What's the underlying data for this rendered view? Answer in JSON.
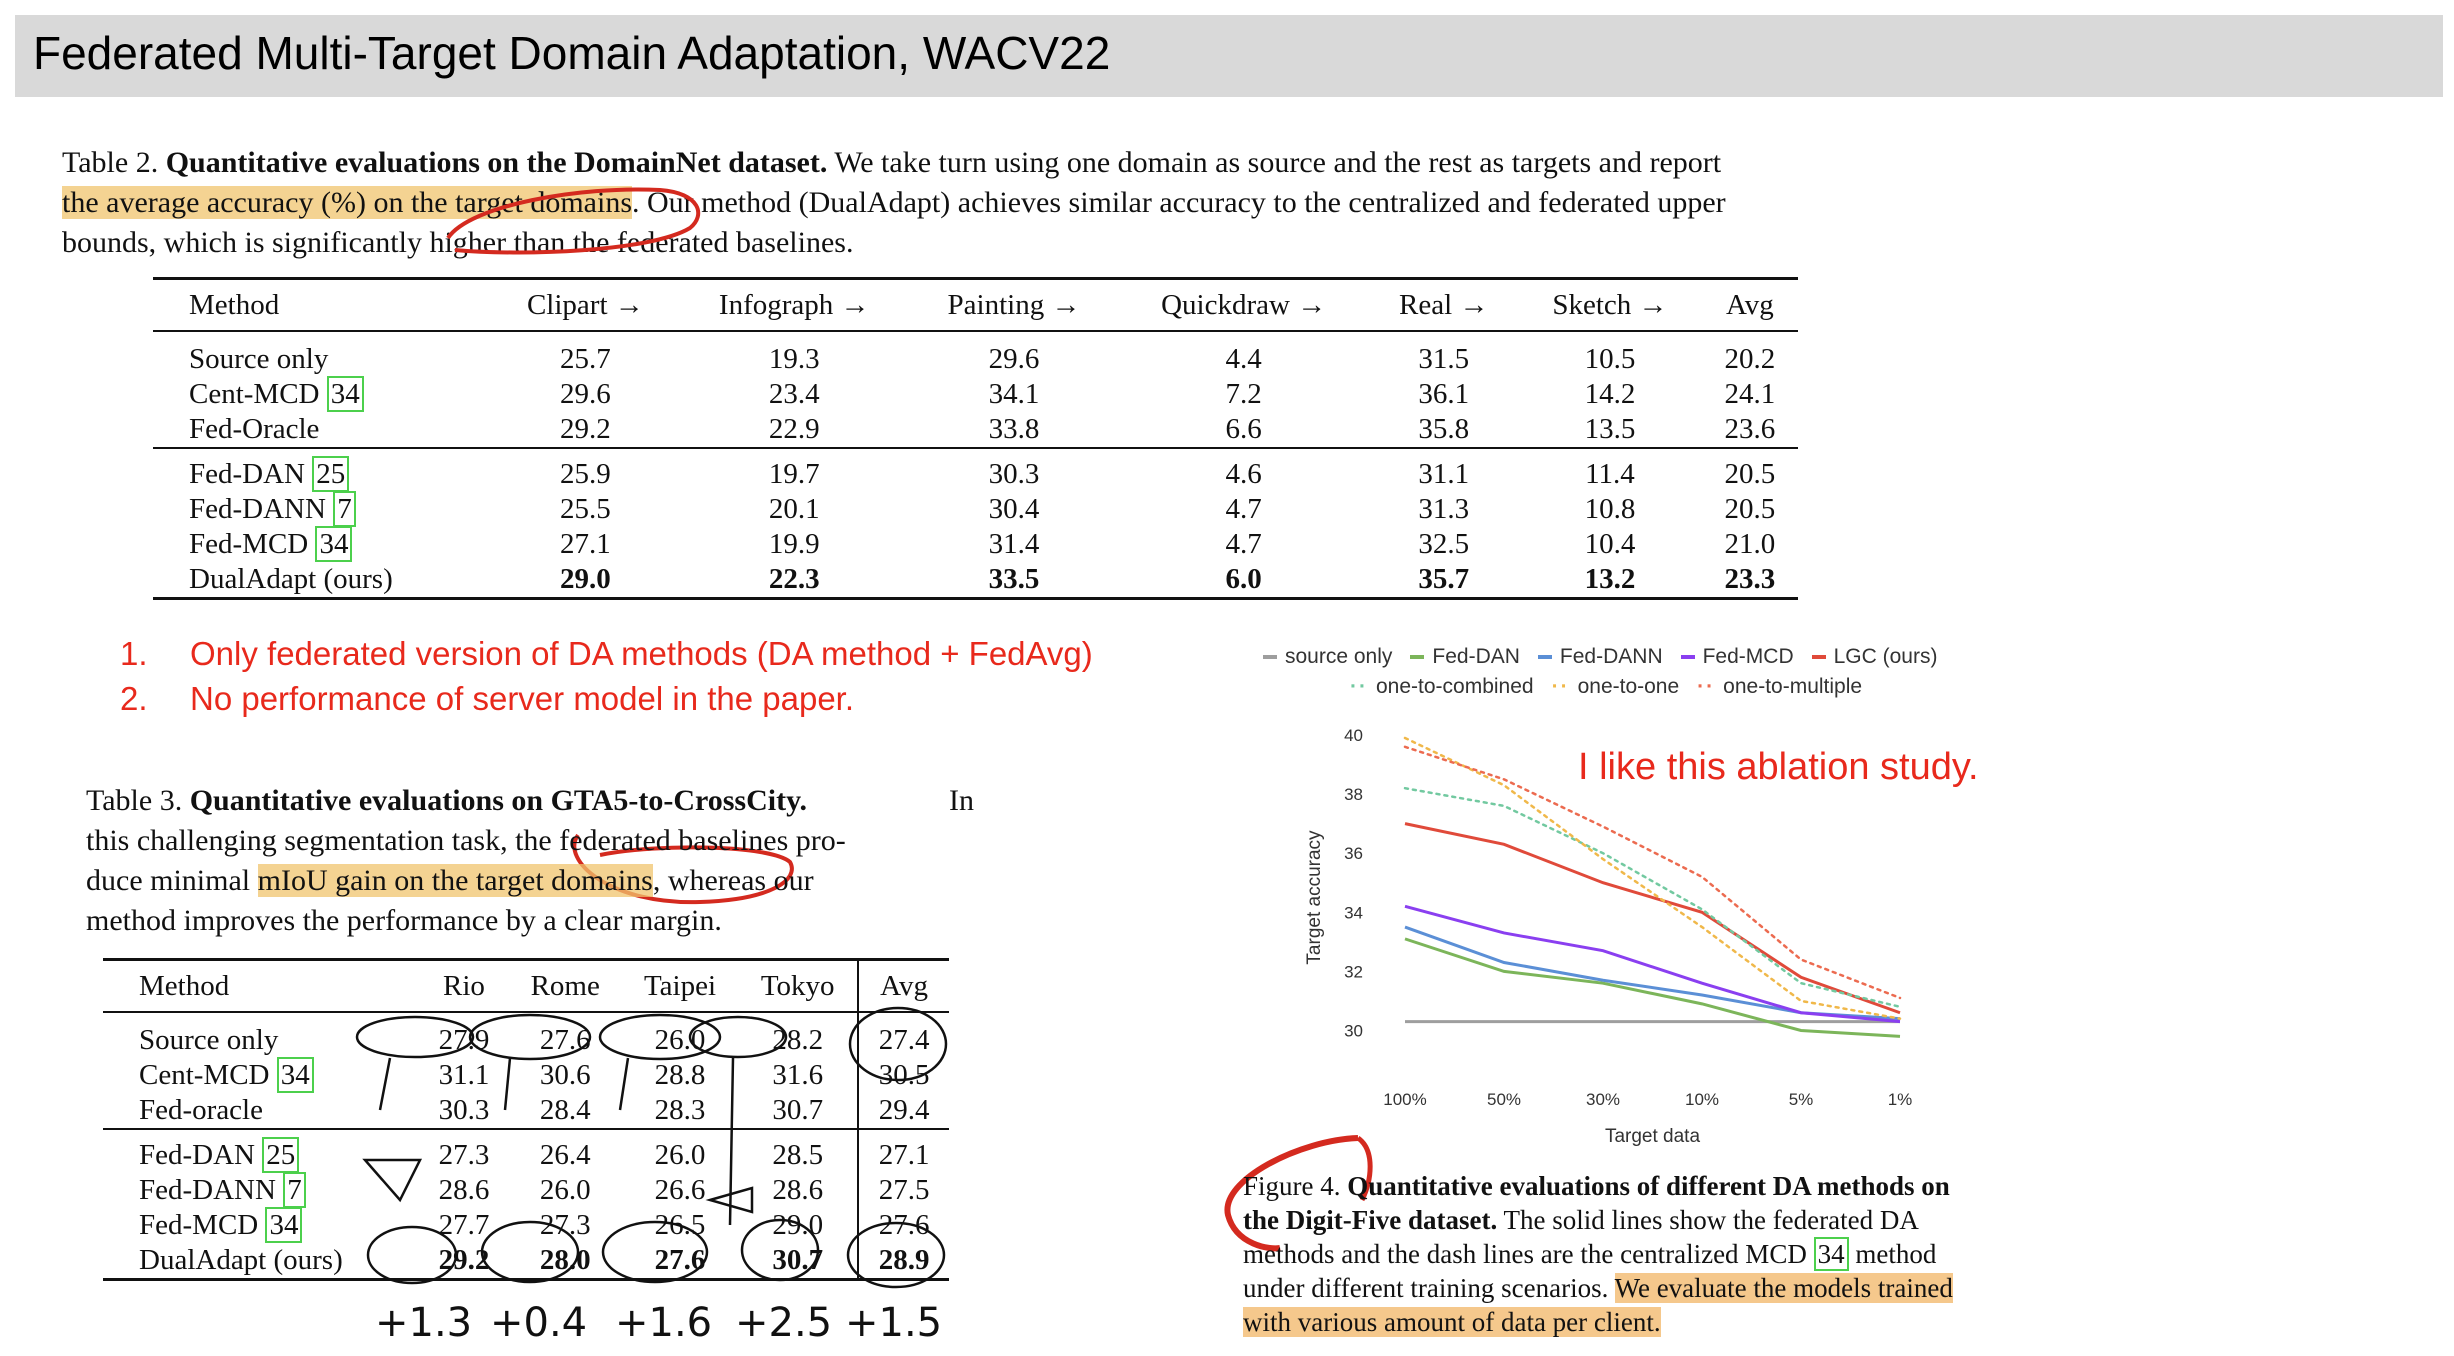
{
  "slide": {
    "title": "Federated Multi-Target Domain Adaptation, WACV22"
  },
  "table2": {
    "caption_label": "Table 2.",
    "caption_bold": "Quantitative evaluations on the DomainNet dataset.",
    "caption_text_1": "We take turn using one domain as source and the rest as targets and report",
    "caption_highlight": "the average accuracy (%) on the target domains",
    "caption_text_2": ". Our method (DualAdapt) achieves similar accuracy to the centralized and federated upper",
    "caption_text_3": "bounds, which is significantly higher than the federated baselines.",
    "headers": [
      "Method",
      "Clipart →",
      "Infograph →",
      "Painting →",
      "Quickdraw →",
      "Real →",
      "Sketch →",
      "Avg"
    ],
    "group1": [
      {
        "method": "Source only",
        "cite": "",
        "values": [
          "25.7",
          "19.3",
          "29.6",
          "4.4",
          "31.5",
          "10.5",
          "20.2"
        ]
      },
      {
        "method": "Cent-MCD",
        "cite": "34",
        "values": [
          "29.6",
          "23.4",
          "34.1",
          "7.2",
          "36.1",
          "14.2",
          "24.1"
        ]
      },
      {
        "method": "Fed-Oracle",
        "cite": "",
        "values": [
          "29.2",
          "22.9",
          "33.8",
          "6.6",
          "35.8",
          "13.5",
          "23.6"
        ]
      }
    ],
    "group2": [
      {
        "method": "Fed-DAN",
        "cite": "25",
        "values": [
          "25.9",
          "19.7",
          "30.3",
          "4.6",
          "31.1",
          "11.4",
          "20.5"
        ]
      },
      {
        "method": "Fed-DANN",
        "cite": "7",
        "values": [
          "25.5",
          "20.1",
          "30.4",
          "4.7",
          "31.3",
          "10.8",
          "20.5"
        ]
      },
      {
        "method": "Fed-MCD",
        "cite": "34",
        "values": [
          "27.1",
          "19.9",
          "31.4",
          "4.7",
          "32.5",
          "10.4",
          "21.0"
        ]
      },
      {
        "method": "DualAdapt (ours)",
        "cite": "",
        "values": [
          "29.0",
          "22.3",
          "33.5",
          "6.0",
          "35.7",
          "13.2",
          "23.3"
        ]
      }
    ]
  },
  "notes": {
    "n1_num": "1.",
    "n1_text": "Only federated version of DA methods (DA method + FedAvg)",
    "n2_num": "2.",
    "n2_text": "No performance of server model in the paper.",
    "ablation": "I like this ablation study."
  },
  "table3": {
    "caption_label": "Table 3.",
    "caption_bold": "Quantitative evaluations on GTA5-to-CrossCity.",
    "caption_l1_end": "In",
    "caption_l2": "this challenging segmentation task, the federated baselines pro-",
    "caption_l3_start": "duce minimal",
    "caption_highlight": "mIoU gain on the target domains",
    "caption_l3_end": ", whereas our",
    "caption_l4": "method improves the performance by a clear margin.",
    "headers": [
      "Method",
      "Rio",
      "Rome",
      "Taipei",
      "Tokyo",
      "Avg"
    ],
    "group1": [
      {
        "method": "Source only",
        "cite": "",
        "values": [
          "27.9",
          "27.6",
          "26.0",
          "28.2",
          "27.4"
        ]
      },
      {
        "method": "Cent-MCD",
        "cite": "34",
        "values": [
          "31.1",
          "30.6",
          "28.8",
          "31.6",
          "30.5"
        ]
      },
      {
        "method": "Fed-oracle",
        "cite": "",
        "values": [
          "30.3",
          "28.4",
          "28.3",
          "30.7",
          "29.4"
        ]
      }
    ],
    "group2": [
      {
        "method": "Fed-DAN",
        "cite": "25",
        "values": [
          "27.3",
          "26.4",
          "26.0",
          "28.5",
          "27.1"
        ]
      },
      {
        "method": "Fed-DANN",
        "cite": "7",
        "values": [
          "28.6",
          "26.0",
          "26.6",
          "28.6",
          "27.5"
        ]
      },
      {
        "method": "Fed-MCD",
        "cite": "34",
        "values": [
          "27.7",
          "27.3",
          "26.5",
          "29.0",
          "27.6"
        ]
      },
      {
        "method": "DualAdapt (ours)",
        "cite": "",
        "values": [
          "29.2",
          "28.0",
          "27.6",
          "30.7",
          "28.9"
        ]
      }
    ],
    "gains": [
      "+1.3",
      "+0.4",
      "+1.6",
      "+2.5",
      "+1.5"
    ]
  },
  "figure4": {
    "caption_label": "Figure 4.",
    "caption_bold_1": "Quantitative evaluations of different DA methods on",
    "caption_bold_2": "the Digit-Five dataset.",
    "caption_text_1": "The solid lines show the federated DA",
    "caption_text_2a": "methods and the dash lines are the centralized MCD",
    "caption_cite": "34",
    "caption_text_2b": "method",
    "caption_text_3": "under different training scenarios.",
    "caption_highlight_1": "We evaluate the models trained",
    "caption_highlight_2": "with various amount of data per client."
  },
  "chart_data": {
    "type": "line",
    "x": [
      "100%",
      "50%",
      "30%",
      "10%",
      "5%",
      "1%"
    ],
    "xlabel": "Target data",
    "ylabel": "Target accuracy",
    "ylim": [
      29,
      40
    ],
    "yticks": [
      "30",
      "32",
      "34",
      "36",
      "38",
      "40"
    ],
    "legend_position": "top",
    "series": [
      {
        "name": "source only",
        "style": "solid",
        "color": "#9e9e9e",
        "values": [
          30.3,
          30.3,
          30.3,
          30.3,
          30.3,
          30.3
        ]
      },
      {
        "name": "Fed-DAN",
        "style": "solid",
        "color": "#7cb55a",
        "values": [
          33.1,
          32.0,
          31.6,
          30.9,
          30.0,
          29.8
        ]
      },
      {
        "name": "Fed-DANN",
        "style": "solid",
        "color": "#5b8fd6",
        "values": [
          33.5,
          32.3,
          31.7,
          31.2,
          30.6,
          30.4
        ]
      },
      {
        "name": "Fed-MCD",
        "style": "solid",
        "color": "#8a3ff0",
        "values": [
          34.2,
          33.3,
          32.7,
          31.6,
          30.6,
          30.3
        ]
      },
      {
        "name": "LGC (ours)",
        "style": "solid",
        "color": "#e04a3a",
        "values": [
          37.0,
          36.3,
          35.0,
          34.0,
          31.8,
          30.6
        ]
      },
      {
        "name": "one-to-combined",
        "style": "dotted",
        "color": "#72c9a0",
        "values": [
          38.2,
          37.6,
          36.0,
          34.1,
          31.6,
          30.8
        ]
      },
      {
        "name": "one-to-one",
        "style": "dotted",
        "color": "#f0b84a",
        "values": [
          39.9,
          38.3,
          35.8,
          33.5,
          31.0,
          30.4
        ]
      },
      {
        "name": "one-to-multiple",
        "style": "dotted",
        "color": "#ec6b50",
        "values": [
          39.6,
          38.5,
          36.9,
          35.2,
          32.4,
          31.1
        ]
      }
    ]
  }
}
